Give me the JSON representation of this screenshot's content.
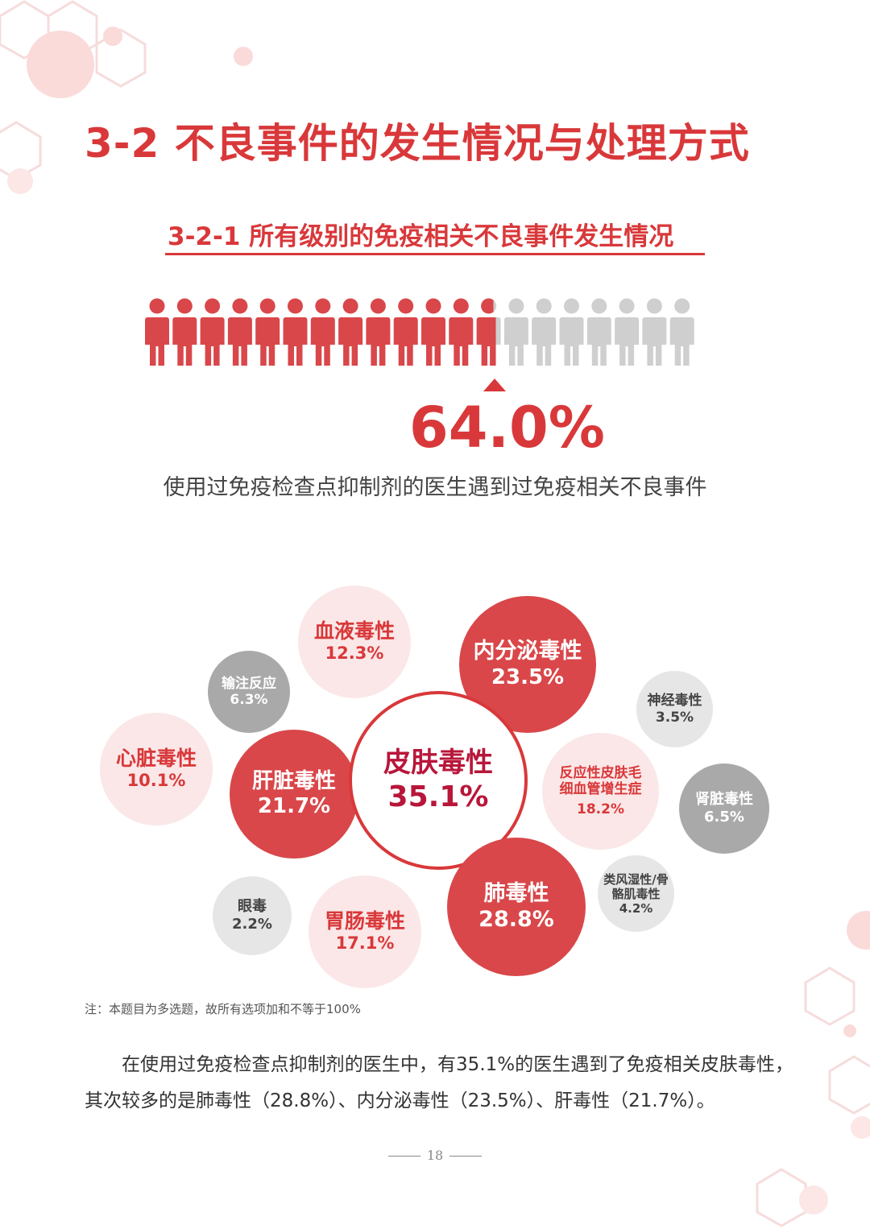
{
  "title": "3-2 不良事件的发生情况与处理方式",
  "subtitle": "3-2-1 所有级别的免疫相关不良事件发生情况",
  "people": {
    "total": 20,
    "affected_fraction": 0.64,
    "color_affected": "#d9474a",
    "color_rest": "#cfcfcf"
  },
  "stat": {
    "value": "64.0%",
    "description": "使用过免疫检查点抑制剂的医生遇到过免疫相关不良事件"
  },
  "bubbles": {
    "skin": {
      "name": "皮肤毒性",
      "pct": "35.1%"
    },
    "lung": {
      "name": "肺毒性",
      "pct": "28.8%"
    },
    "endocrine": {
      "name": "内分泌毒性",
      "pct": "23.5%"
    },
    "liver": {
      "name": "肝脏毒性",
      "pct": "21.7%"
    },
    "capillary": {
      "name": "反应性皮肤毛细血管增生症",
      "pct": "18.2%"
    },
    "gi": {
      "name": "胃肠毒性",
      "pct": "17.1%"
    },
    "blood": {
      "name": "血液毒性",
      "pct": "12.3%"
    },
    "heart": {
      "name": "心脏毒性",
      "pct": "10.1%"
    },
    "kidney": {
      "name": "肾脏毒性",
      "pct": "6.5%"
    },
    "infusion": {
      "name": "输注反应",
      "pct": "6.3%"
    },
    "rheumatic": {
      "name": "类风湿性/骨骼肌毒性",
      "pct": "4.2%"
    },
    "neuro": {
      "name": "神经毒性",
      "pct": "3.5%"
    },
    "eye": {
      "name": "眼毒",
      "pct": "2.2%"
    }
  },
  "note": "注：本题目为多选题，故所有选项加和不等于100%",
  "paragraph": "在使用过免疫检查点抑制剂的医生中，有35.1%的医生遇到了免疫相关皮肤毒性，其次较多的是肺毒性（28.8%）、内分泌毒性（23.5%）、肝毒性（21.7%）。",
  "page_number": "18"
}
